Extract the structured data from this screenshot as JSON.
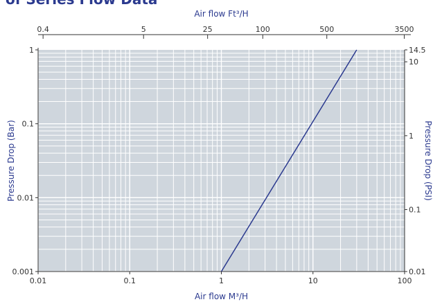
{
  "heading_fragment": "of Series Flow Data",
  "chart_data": {
    "type": "line",
    "title": "",
    "xlabel": "Air flow M³/H",
    "ylabel": "Pressure Drop (Bar)",
    "top_xlabel": "Air flow Ft³/H",
    "right_ylabel": "Pressure Drop (PSI)",
    "x_scale": "log",
    "y_scale": "log",
    "xlim": [
      0.01,
      100
    ],
    "ylim": [
      0.001,
      1
    ],
    "x_ticks": [
      "0.01",
      "0.1",
      "1",
      "10",
      "100"
    ],
    "y_ticks": [
      "0.001",
      "0.01",
      "0.1",
      "1"
    ],
    "top_ticks": [
      "0.4",
      "5",
      "25",
      "100",
      "500",
      "3500"
    ],
    "right_ticks": [
      "0.01",
      "0.1",
      "1",
      "10",
      "14.5"
    ],
    "grid": true,
    "series": [
      {
        "x": [
          1,
          30
        ],
        "y": [
          0.001,
          1
        ]
      }
    ],
    "colors": {
      "line": "#2b3a8f",
      "plot_bg": "#cfd6dd",
      "grid": "#ffffff",
      "axis_title": "#2b3a8f"
    }
  }
}
